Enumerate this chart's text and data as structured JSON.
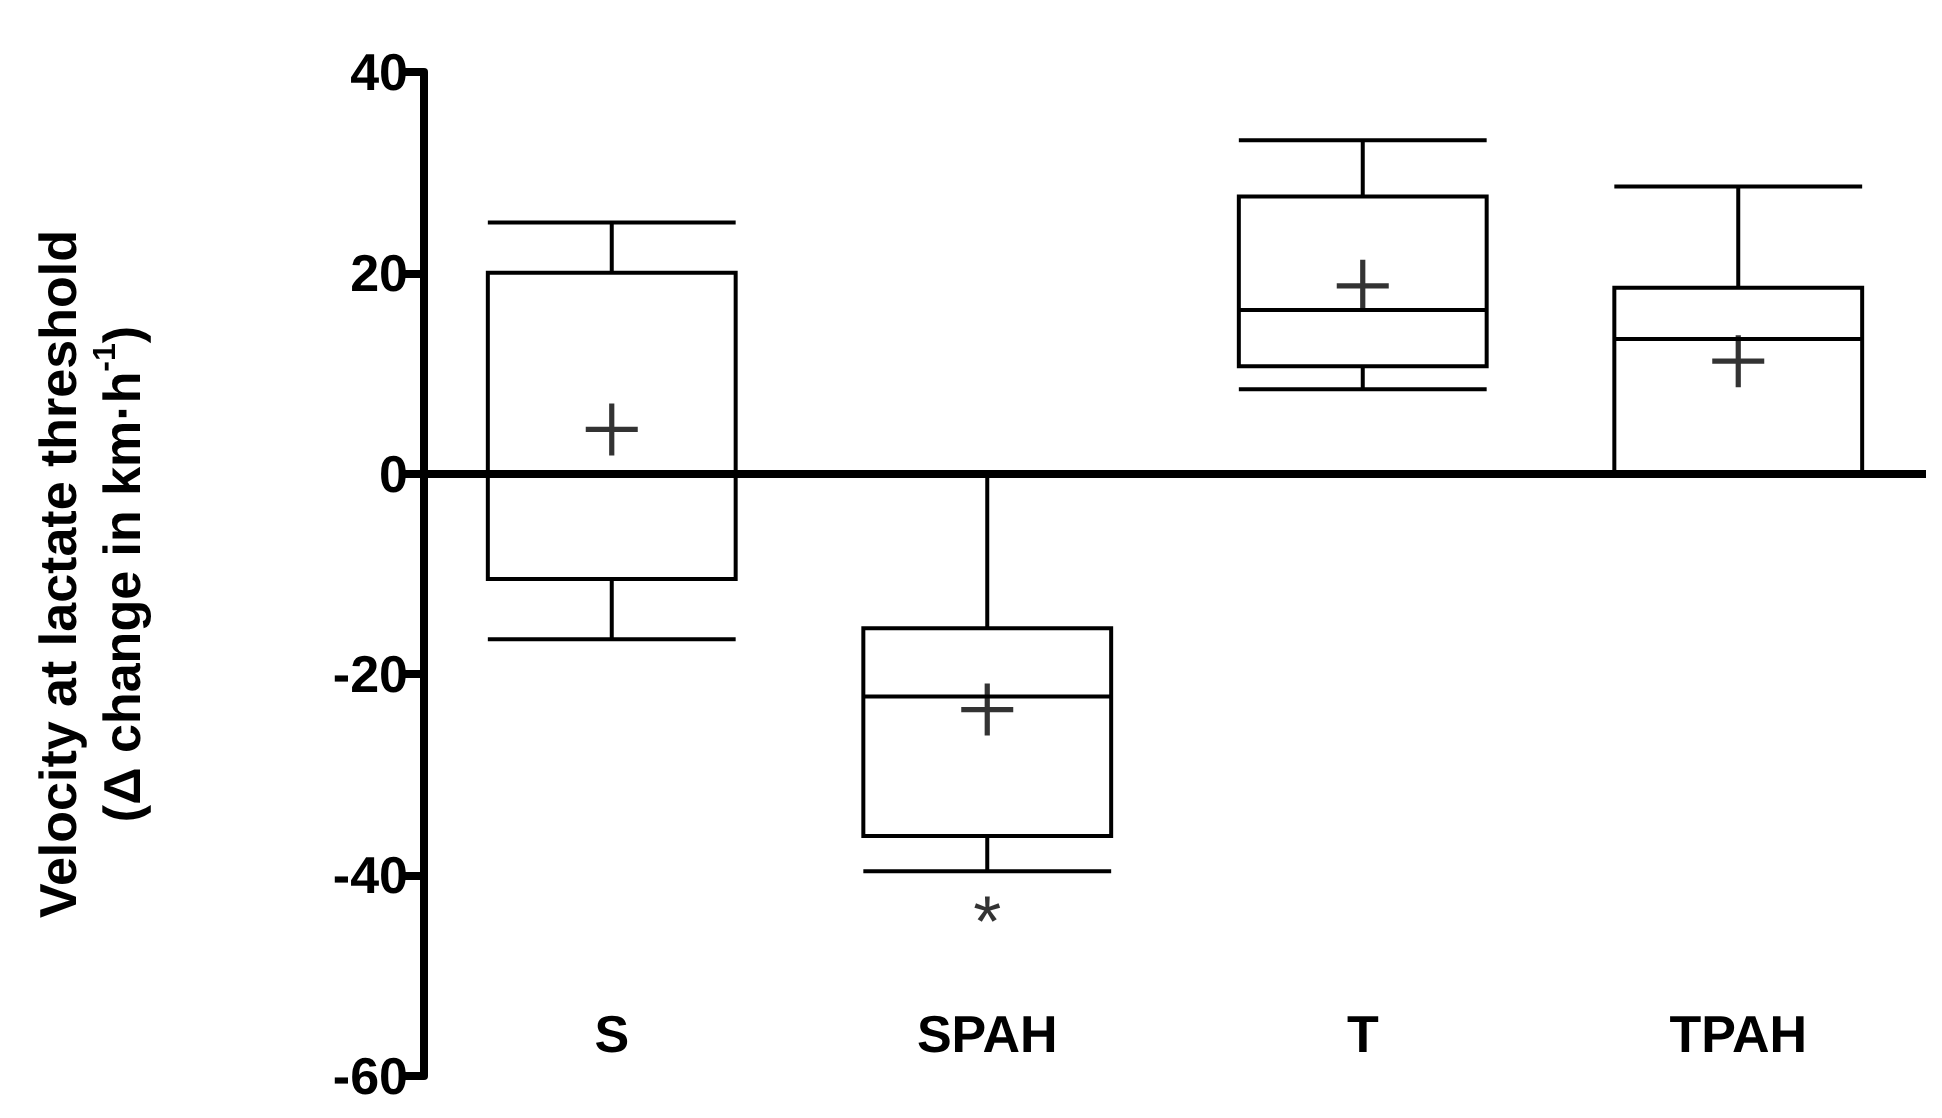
{
  "chart_data": {
    "type": "box",
    "ylabel": "Velocity at lactate threshold\n(Δ change in km·h$^{-1}$)",
    "categories": [
      "S",
      "SPAH",
      "T",
      "TPAH"
    ],
    "boxes": [
      {
        "low": -16.5,
        "q1": -10.5,
        "median": 20,
        "q3": 20,
        "high": 25,
        "mean": 4.4
      },
      {
        "low": -39.6,
        "q1": -36.1,
        "median": -22.2,
        "q3": -15.4,
        "high": 0,
        "mean": -23.5
      },
      {
        "low": 8.4,
        "q1": 10.7,
        "median": 16.3,
        "q3": 27.6,
        "high": 33.2,
        "mean": 18.7
      },
      {
        "low": 0,
        "q1": 0,
        "median": 13.4,
        "q3": 18.5,
        "high": 28.6,
        "mean": 11.2
      }
    ],
    "color": "#000000",
    "ylim": [
      -60,
      40
    ],
    "yticks": [
      -60,
      -40,
      -20,
      0,
      20,
      40
    ],
    "grid": false,
    "ref_lines": [
      {
        "axis": "y",
        "value": 0
      }
    ],
    "annotations": [
      "*"
    ]
  }
}
